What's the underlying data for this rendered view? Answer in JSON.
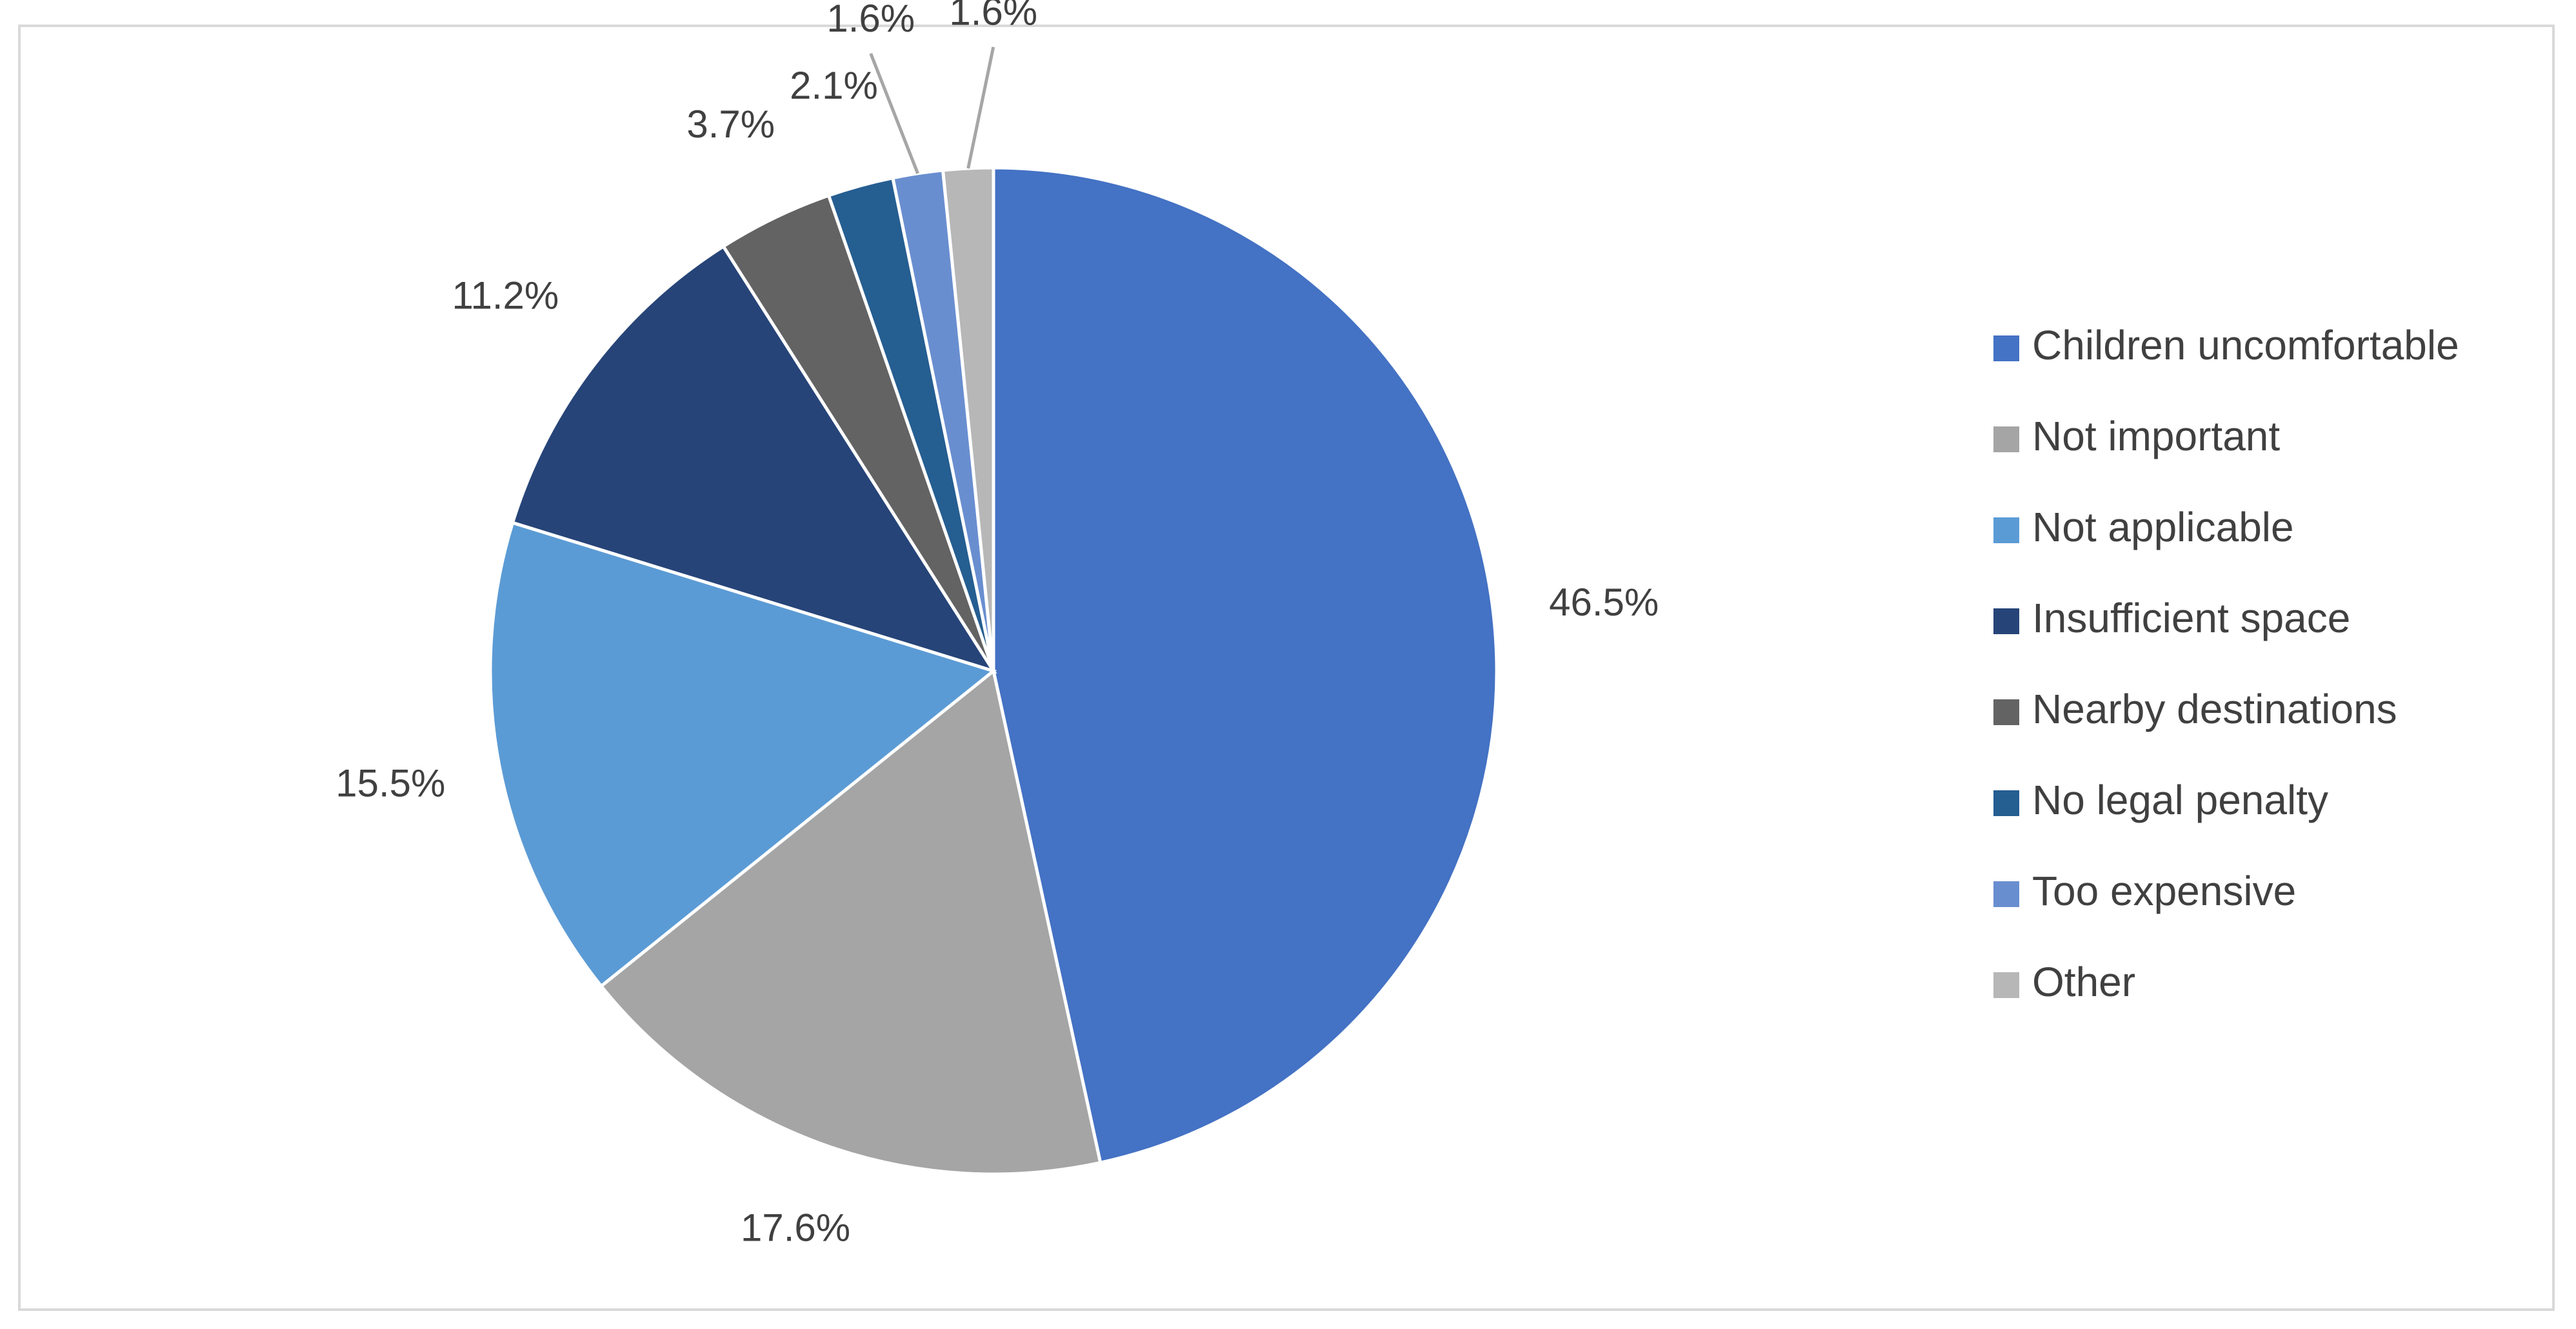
{
  "chart_data": {
    "type": "pie",
    "title": "",
    "legend_position": "right",
    "categories": [
      "Children uncomfortable",
      "Not important",
      "Not applicable",
      "Insufficient space",
      "Nearby destinations",
      "No legal penalty",
      "Too expensive",
      "Other"
    ],
    "values": [
      46.5,
      17.6,
      15.5,
      11.2,
      3.7,
      2.1,
      1.6,
      1.6
    ],
    "labels": [
      "46.5%",
      "17.6%",
      "15.5%",
      "11.2%",
      "3.7%",
      "2.1%",
      "1.6%",
      "1.6%"
    ],
    "colors": [
      "#4472c4",
      "#a5a5a5",
      "#5b9bd5",
      "#264478",
      "#636363",
      "#255e91",
      "#698ed0",
      "#b7b7b7"
    ]
  }
}
